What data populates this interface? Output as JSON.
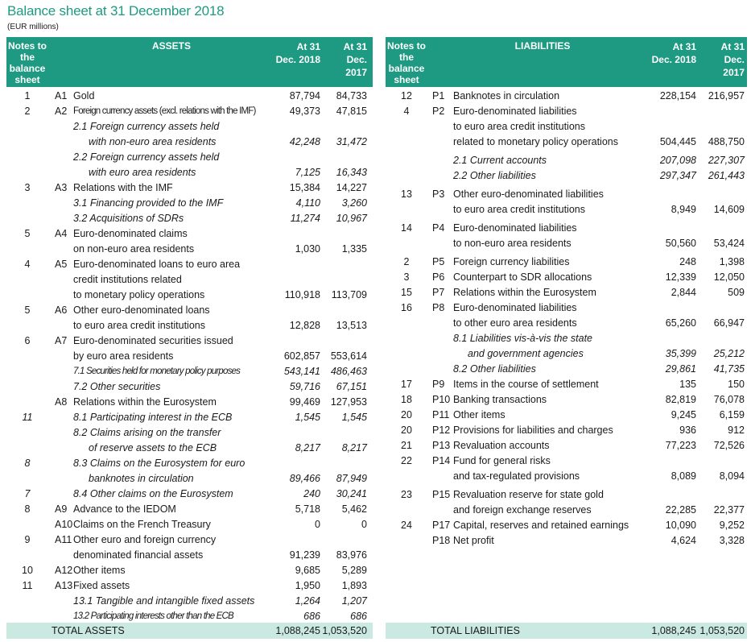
{
  "title": "Balance sheet at 31 December 2018",
  "subtitle": "(EUR millions)",
  "assets": {
    "headers": {
      "notes": "Notes to the balance sheet",
      "section": "ASSETS",
      "col1": "At 31 Dec. 2018",
      "col2": "At 31 Dec. 2017"
    },
    "rows": [
      {
        "note": "1",
        "code": "A1",
        "desc": "Gold",
        "v1": "87,794",
        "v2": "84,733"
      },
      {
        "note": "2",
        "code": "A2",
        "desc": "Foreign currency assets (excl. relations with the IMF)",
        "v1": "49,373",
        "v2": "47,815",
        "cond": true
      },
      {
        "desc": "2.1 Foreign currency assets held",
        "italic": true
      },
      {
        "desc": "with non-euro area residents",
        "italic": true,
        "indent": 2,
        "v1": "42,248",
        "v2": "31,472"
      },
      {
        "desc": "2.2 Foreign currency assets held",
        "italic": true
      },
      {
        "desc": "with euro area residents",
        "italic": true,
        "indent": 2,
        "v1": "7,125",
        "v2": "16,343"
      },
      {
        "note": "3",
        "code": "A3",
        "desc": "Relations with the IMF",
        "v1": "15,384",
        "v2": "14,227"
      },
      {
        "desc": "3.1 Financing provided to the IMF",
        "italic": true,
        "v1": "4,110",
        "v2": "3,260"
      },
      {
        "desc": "3.2 Acquisitions of SDRs",
        "italic": true,
        "v1": "11,274",
        "v2": "10,967"
      },
      {
        "note": "5",
        "code": "A4",
        "desc": "Euro-denominated claims"
      },
      {
        "desc": "on non-euro area residents",
        "v1": "1,030",
        "v2": "1,335"
      },
      {
        "note": "4",
        "code": "A5",
        "desc": "Euro-denominated loans to euro area"
      },
      {
        "desc": "credit institutions related"
      },
      {
        "desc": "to monetary policy operations",
        "v1": "110,918",
        "v2": "113,709"
      },
      {
        "note": "5",
        "code": "A6",
        "desc": "Other euro-denominated loans"
      },
      {
        "desc": "to euro area credit institutions",
        "v1": "12,828",
        "v2": "13,513"
      },
      {
        "note": "6",
        "code": "A7",
        "desc": "Euro-denominated securities issued"
      },
      {
        "desc": "by euro area residents",
        "v1": "602,857",
        "v2": "553,614"
      },
      {
        "desc": "7.1 Securities held for monetary policy purposes",
        "italic": true,
        "cond": true,
        "v1": "543,141",
        "v2": "486,463"
      },
      {
        "desc": "7.2 Other securities",
        "italic": true,
        "v1": "59,716",
        "v2": "67,151"
      },
      {
        "code": "A8",
        "desc": "Relations within the Eurosystem",
        "v1": "99,469",
        "v2": "127,953"
      },
      {
        "note": "11",
        "noteItalic": true,
        "desc": "8.1 Participating interest in the ECB",
        "italic": true,
        "v1": "1,545",
        "v2": "1,545"
      },
      {
        "desc": "8.2 Claims arising on the transfer",
        "italic": true
      },
      {
        "desc": "of reserve assets to the ECB",
        "italic": true,
        "indent": 2,
        "v1": "8,217",
        "v2": "8,217"
      },
      {
        "note": "8",
        "noteItalic": true,
        "desc": "8.3 Claims on the Eurosystem for euro",
        "italic": true
      },
      {
        "desc": "banknotes in circulation",
        "italic": true,
        "indent": 2,
        "v1": "89,466",
        "v2": "87,949"
      },
      {
        "note": "7",
        "noteItalic": true,
        "desc": "8.4 Other claims on the Eurosystem",
        "italic": true,
        "v1": "240",
        "v2": "30,241"
      },
      {
        "note": "8",
        "code": "A9",
        "desc": "Advance to the IEDOM",
        "v1": "5,718",
        "v2": "5,462"
      },
      {
        "code": "A10",
        "desc": "Claims on the French Treasury",
        "v1": "0",
        "v2": "0"
      },
      {
        "note": "9",
        "code": "A11",
        "desc": "Other euro and foreign currency"
      },
      {
        "desc": "denominated financial assets",
        "v1": "91,239",
        "v2": "83,976"
      },
      {
        "note": "10",
        "code": "A12",
        "desc": "Other items",
        "v1": "9,685",
        "v2": "5,289"
      },
      {
        "note": "11",
        "code": "A13",
        "desc": "Fixed assets",
        "v1": "1,950",
        "v2": "1,893"
      },
      {
        "desc": "13.1 Tangible and intangible fixed assets",
        "italic": true,
        "v1": "1,264",
        "v2": "1,207"
      },
      {
        "desc": "13.2 Participating interests other than the ECB",
        "italic": true,
        "cond": true,
        "v1": "686",
        "v2": "686"
      }
    ],
    "total": {
      "label": "TOTAL ASSETS",
      "v1": "1,088,245",
      "v2": "1,053,520"
    }
  },
  "liabilities": {
    "headers": {
      "notes": "Notes to the balance sheet",
      "section": "LIABILITIES",
      "col1": "At 31 Dec. 2018",
      "col2": "At 31 Dec. 2017"
    },
    "rows": [
      {
        "note": "12",
        "code": "P1",
        "desc": "Banknotes in circulation",
        "v1": "228,154",
        "v2": "216,957"
      },
      {
        "note": "4",
        "code": "P2",
        "desc": "Euro-denominated liabilities"
      },
      {
        "desc": "to euro area credit institutions"
      },
      {
        "desc": "related to monetary policy operations",
        "v1": "504,445",
        "v2": "488,750"
      },
      {
        "desc": "2.1 Current accounts",
        "italic": true,
        "gap": true,
        "v1": "207,098",
        "v2": "227,307"
      },
      {
        "desc": "2.2 Other liabilities",
        "italic": true,
        "v1": "297,347",
        "v2": "261,443"
      },
      {
        "note": "13",
        "code": "P3",
        "desc": "Other euro-denominated liabilities",
        "gap": true
      },
      {
        "desc": "to euro area credit institutions",
        "v1": "8,949",
        "v2": "14,609"
      },
      {
        "note": "14",
        "code": "P4",
        "desc": "Euro-denominated liabilities",
        "gap": true
      },
      {
        "desc": "to non-euro area residents",
        "v1": "50,560",
        "v2": "53,424"
      },
      {
        "note": "2",
        "code": "P5",
        "desc": "Foreign currency liabilities",
        "gap": true,
        "v1": "248",
        "v2": "1,398"
      },
      {
        "note": "3",
        "code": "P6",
        "desc": "Counterpart to SDR allocations",
        "v1": "12,339",
        "v2": "12,050"
      },
      {
        "note": "15",
        "code": "P7",
        "desc": "Relations within the Eurosystem",
        "v1": "2,844",
        "v2": "509"
      },
      {
        "note": "16",
        "code": "P8",
        "desc": "Euro-denominated liabilities"
      },
      {
        "desc": "to other euro area residents",
        "v1": "65,260",
        "v2": "66,947"
      },
      {
        "desc": "8.1 Liabilities vis-à-vis the state",
        "italic": true
      },
      {
        "desc": "and government agencies",
        "italic": true,
        "indent": 2,
        "v1": "35,399",
        "v2": "25,212"
      },
      {
        "desc": "8.2 Other liabilities",
        "italic": true,
        "v1": "29,861",
        "v2": "41,735"
      },
      {
        "note": "17",
        "code": "P9",
        "desc": "Items in the course of settlement",
        "v1": "135",
        "v2": "150"
      },
      {
        "note": "18",
        "code": "P10",
        "desc": "Banking transactions",
        "v1": "82,819",
        "v2": "76,078"
      },
      {
        "note": "20",
        "code": "P11",
        "desc": "Other items",
        "v1": "9,245",
        "v2": "6,159"
      },
      {
        "note": "20",
        "code": "P12",
        "desc": "Provisions for liabilities and charges",
        "v1": "936",
        "v2": "912"
      },
      {
        "note": "21",
        "code": "P13",
        "desc": "Revaluation accounts",
        "v1": "77,223",
        "v2": "72,526"
      },
      {
        "note": "22",
        "code": "P14",
        "desc": "Fund for general risks"
      },
      {
        "desc": "and tax-regulated provisions",
        "v1": "8,089",
        "v2": "8,094"
      },
      {
        "note": "23",
        "code": "P15",
        "desc": "Revaluation reserve for state gold",
        "gap": true
      },
      {
        "desc": "and foreign exchange reserves",
        "v1": "22,285",
        "v2": "22,377"
      },
      {
        "note": "24",
        "code": "P17",
        "desc": "Capital, reserves and retained earnings",
        "v1": "10,090",
        "v2": "9,252"
      },
      {
        "code": "P18",
        "desc": "Net profit",
        "v1": "4,624",
        "v2": "3,328"
      }
    ],
    "total": {
      "label": "TOTAL LIABILITIES",
      "v1": "1,088,245",
      "v2": "1,053,520"
    }
  },
  "colors": {
    "header_bg": "#1e9a82",
    "total_bg": "#c9e9e1",
    "title": "#1e9a82"
  }
}
